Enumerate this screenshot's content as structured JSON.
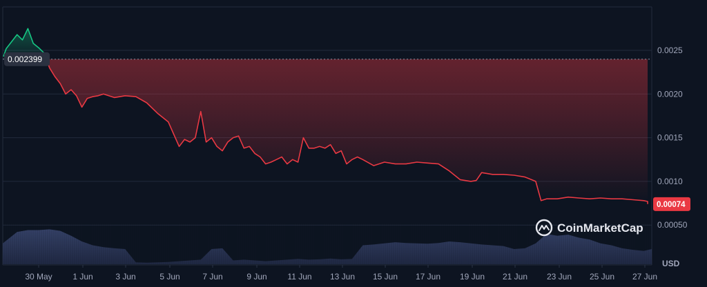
{
  "chart_data": {
    "type": "line",
    "title": "",
    "xlabel": "",
    "ylabel": "",
    "currency": "USD",
    "ylim": [
      0.0003,
      0.003
    ],
    "y_ticks": [
      "0.0025",
      "0.0020",
      "0.0015",
      "0.0010",
      "0.00050"
    ],
    "x_ticks": [
      "30 May",
      "1 Jun",
      "3 Jun",
      "5 Jun",
      "7 Jun",
      "9 Jun",
      "11 Jun",
      "13 Jun",
      "15 Jun",
      "17 Jun",
      "19 Jun",
      "21 Jun",
      "23 Jun",
      "25 Jun",
      "27 Jun"
    ],
    "reference_value": 0.002399,
    "reference_label": "0.002399",
    "last_value": 0.00074,
    "last_label": "0.00074",
    "grid": "horizontal",
    "colors": {
      "background": "#0d1421",
      "above_reference": "#16c784",
      "below_reference": "#ea3943",
      "volume": "#2b3655",
      "grid": "#222b3d"
    },
    "series": [
      {
        "x": [
          "28 May",
          "28 May 12:00",
          "29 May",
          "29 May 06:00",
          "29 May 12:00",
          "29 May 18:00",
          "30 May",
          "30 May 06:00",
          "30 May 12:00",
          "30 May 18:00",
          "31 May",
          "31 May 06:00",
          "31 May 12:00",
          "31 May 18:00",
          "1 Jun",
          "1 Jun 06:00",
          "1 Jun 12:00",
          "1 Jun 18:00",
          "2 Jun",
          "2 Jun 12:00",
          "3 Jun",
          "3 Jun 12:00",
          "4 Jun",
          "4 Jun 12:00",
          "5 Jun",
          "5 Jun 06:00",
          "5 Jun 12:00",
          "5 Jun 18:00",
          "6 Jun",
          "6 Jun 06:00",
          "6 Jun 12:00",
          "6 Jun 18:00",
          "7 Jun",
          "7 Jun 06:00",
          "7 Jun 12:00",
          "7 Jun 18:00",
          "8 Jun",
          "8 Jun 06:00",
          "8 Jun 12:00",
          "8 Jun 18:00",
          "9 Jun",
          "9 Jun 06:00",
          "9 Jun 12:00",
          "9 Jun 18:00",
          "10 Jun",
          "10 Jun 06:00",
          "10 Jun 12:00",
          "10 Jun 18:00",
          "11 Jun",
          "11 Jun 06:00",
          "11 Jun 12:00",
          "11 Jun 18:00",
          "12 Jun",
          "12 Jun 06:00",
          "12 Jun 12:00",
          "12 Jun 18:00",
          "13 Jun",
          "13 Jun 06:00",
          "13 Jun 12:00",
          "13 Jun 18:00",
          "14 Jun",
          "14 Jun 12:00",
          "15 Jun",
          "15 Jun 12:00",
          "16 Jun",
          "16 Jun 12:00",
          "17 Jun",
          "17 Jun 12:00",
          "18 Jun",
          "18 Jun 12:00",
          "19 Jun",
          "19 Jun 06:00",
          "19 Jun 12:00",
          "20 Jun",
          "20 Jun 12:00",
          "21 Jun",
          "21 Jun 12:00",
          "22 Jun",
          "22 Jun 06:00",
          "22 Jun 12:00",
          "23 Jun",
          "23 Jun 12:00",
          "24 Jun",
          "24 Jun 12:00",
          "25 Jun",
          "25 Jun 12:00",
          "26 Jun",
          "26 Jun 12:00",
          "27 Jun",
          "27 Jun 06:00",
          "27 Jun 12:00"
        ],
        "values": [
          0.00243,
          0.00252,
          0.00268,
          0.00262,
          0.00275,
          0.00258,
          0.00253,
          0.00247,
          0.0023,
          0.0022,
          0.00212,
          0.002,
          0.00205,
          0.00198,
          0.00185,
          0.00195,
          0.00197,
          0.00198,
          0.002,
          0.00196,
          0.00198,
          0.00197,
          0.0019,
          0.00178,
          0.00168,
          0.00154,
          0.0014,
          0.00148,
          0.00145,
          0.0015,
          0.0018,
          0.00145,
          0.0015,
          0.0014,
          0.00135,
          0.00145,
          0.0015,
          0.00152,
          0.00138,
          0.0014,
          0.00132,
          0.00128,
          0.0012,
          0.00122,
          0.00125,
          0.00128,
          0.0012,
          0.00125,
          0.00122,
          0.0015,
          0.00138,
          0.00138,
          0.0014,
          0.00138,
          0.00142,
          0.00132,
          0.00135,
          0.0012,
          0.00125,
          0.00128,
          0.00125,
          0.00118,
          0.00122,
          0.0012,
          0.0012,
          0.00122,
          0.00121,
          0.0012,
          0.00112,
          0.00102,
          0.001,
          0.00101,
          0.0011,
          0.00108,
          0.00108,
          0.00107,
          0.00105,
          0.001,
          0.00078,
          0.0008,
          0.0008,
          0.00082,
          0.00081,
          0.0008,
          0.00081,
          0.0008,
          0.0008,
          0.00079,
          0.00078,
          0.00077,
          0.00074
        ]
      }
    ],
    "volume": {
      "x": [
        "28 May",
        "29 May",
        "29 May 12:00",
        "30 May",
        "30 May 12:00",
        "31 May",
        "31 May 12:00",
        "1 Jun",
        "1 Jun 12:00",
        "2 Jun",
        "2 Jun 12:00",
        "3 Jun",
        "3 Jun 12:00",
        "4 Jun",
        "4 Jun 12:00",
        "5 Jun",
        "5 Jun 12:00",
        "6 Jun",
        "6 Jun 12:00",
        "7 Jun",
        "7 Jun 12:00",
        "8 Jun",
        "8 Jun 12:00",
        "9 Jun",
        "9 Jun 12:00",
        "10 Jun",
        "10 Jun 12:00",
        "11 Jun",
        "11 Jun 12:00",
        "12 Jun",
        "12 Jun 12:00",
        "13 Jun",
        "13 Jun 12:00",
        "14 Jun",
        "14 Jun 12:00",
        "15 Jun",
        "15 Jun 12:00",
        "16 Jun",
        "16 Jun 12:00",
        "17 Jun",
        "17 Jun 12:00",
        "18 Jun",
        "18 Jun 12:00",
        "19 Jun",
        "19 Jun 12:00",
        "20 Jun",
        "20 Jun 12:00",
        "21 Jun",
        "21 Jun 12:00",
        "22 Jun",
        "22 Jun 12:00",
        "23 Jun",
        "23 Jun 12:00",
        "24 Jun",
        "24 Jun 12:00",
        "25 Jun",
        "25 Jun 12:00",
        "26 Jun",
        "26 Jun 12:00",
        "27 Jun",
        "27 Jun 12:00"
      ],
      "values": [
        0.55,
        0.85,
        0.9,
        0.9,
        0.92,
        0.88,
        0.75,
        0.6,
        0.5,
        0.45,
        0.42,
        0.4,
        0.05,
        0.04,
        0.05,
        0.06,
        0.08,
        0.1,
        0.12,
        0.4,
        0.42,
        0.1,
        0.12,
        0.1,
        0.08,
        0.1,
        0.12,
        0.14,
        0.12,
        0.13,
        0.15,
        0.13,
        0.14,
        0.5,
        0.52,
        0.55,
        0.58,
        0.56,
        0.55,
        0.54,
        0.56,
        0.6,
        0.58,
        0.55,
        0.52,
        0.5,
        0.48,
        0.4,
        0.42,
        0.55,
        0.8,
        0.75,
        0.78,
        0.7,
        0.65,
        0.55,
        0.5,
        0.42,
        0.38,
        0.35,
        0.4
      ]
    }
  },
  "brand": {
    "name": "CoinMarketCap"
  }
}
